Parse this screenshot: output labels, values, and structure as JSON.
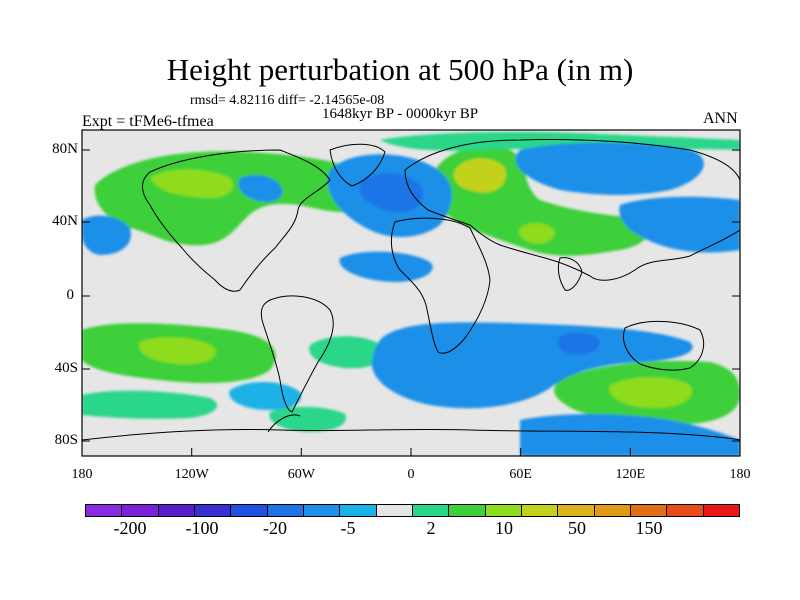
{
  "title": "Height perturbation at 500 hPa (in m)",
  "stats_line": "rmsd= 4.82116 diff= -2.14565e-08",
  "period": "1648kyr BP - 0000kyr BP",
  "experiment": "Expt = tFMe6-tfmea",
  "season": "ANN",
  "lat_labels": [
    "80N",
    "40N",
    "0",
    "40S",
    "80S"
  ],
  "lon_labels": [
    "180",
    "120W",
    "60W",
    "0",
    "60E",
    "120E",
    "180"
  ],
  "colorbar": {
    "colors": [
      "#8a2be2",
      "#7a22d6",
      "#5a1ec8",
      "#3a2fd0",
      "#1f50e0",
      "#1e74e6",
      "#1e90e8",
      "#1ab2e6",
      "#e6e6e6",
      "#2ad68a",
      "#3ed03a",
      "#8edc1e",
      "#c2d21a",
      "#dcb41a",
      "#e09a18",
      "#e07018",
      "#e84a18",
      "#e81818"
    ],
    "labels": [
      "-200",
      "-100",
      "-20",
      "-5",
      "2",
      "10",
      "50",
      "150"
    ]
  },
  "colors": {
    "neutral": "#e6e6e6",
    "pos_weak": "#2ad68a",
    "pos_mid": "#3ed03a",
    "pos_strong": "#c2d21a",
    "neg_weak": "#1ab2e6",
    "neg_mid": "#1e90e8",
    "neg_strong": "#1f50e0"
  }
}
